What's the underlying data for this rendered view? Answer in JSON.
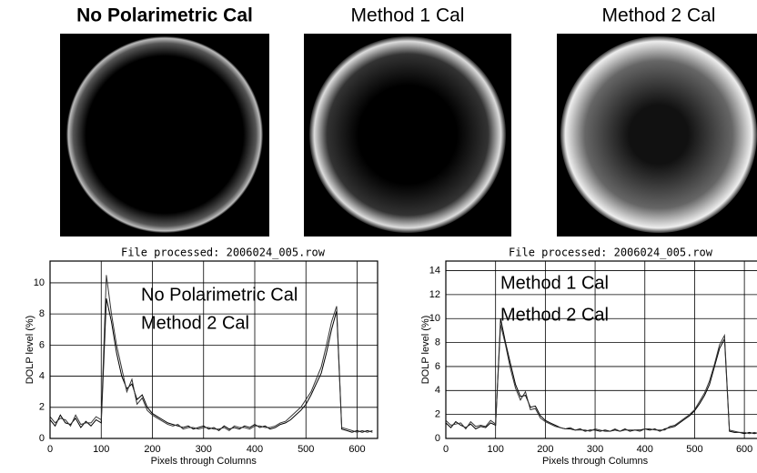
{
  "images": [
    {
      "title": "No Polarimetric Cal"
    },
    {
      "title": "Method 1 Cal"
    },
    {
      "title": "Method 2 Cal"
    }
  ],
  "chart_data": [
    {
      "type": "line",
      "title": "File processed: 2006024_005.row",
      "x_label": "Pixels through Columns",
      "y_label": "DOLP level (%)",
      "xlim": [
        0,
        640
      ],
      "xticks": [
        0,
        100,
        200,
        300,
        400,
        500,
        600
      ],
      "ylim": [
        0,
        11.4
      ],
      "yticks": [
        0,
        2,
        4,
        6,
        8,
        10
      ],
      "grid": true,
      "x": [
        0,
        10,
        20,
        30,
        40,
        50,
        60,
        70,
        80,
        90,
        100,
        110,
        120,
        130,
        140,
        150,
        160,
        170,
        180,
        190,
        200,
        210,
        220,
        230,
        240,
        250,
        260,
        270,
        280,
        290,
        300,
        310,
        320,
        330,
        340,
        350,
        360,
        370,
        380,
        390,
        400,
        410,
        420,
        430,
        440,
        450,
        460,
        470,
        480,
        490,
        500,
        510,
        520,
        530,
        540,
        550,
        560,
        570,
        580,
        590,
        600,
        610,
        620,
        630
      ],
      "series": [
        {
          "name": "No Polarimetric Cal",
          "color": "#000000",
          "values": [
            1.2,
            0.8,
            1.5,
            1.0,
            0.9,
            1.3,
            0.7,
            1.1,
            0.8,
            1.2,
            1.0,
            9.0,
            7.5,
            5.5,
            4.0,
            3.2,
            3.5,
            2.5,
            2.8,
            2.0,
            1.6,
            1.4,
            1.2,
            1.0,
            0.9,
            0.8,
            0.7,
            0.8,
            0.6,
            0.7,
            0.8,
            0.6,
            0.7,
            0.5,
            0.8,
            0.6,
            0.7,
            0.6,
            0.8,
            0.7,
            0.9,
            0.7,
            0.8,
            0.6,
            0.7,
            0.9,
            1.0,
            1.2,
            1.5,
            1.8,
            2.2,
            2.8,
            3.5,
            4.2,
            5.5,
            7.0,
            8.2,
            0.6,
            0.5,
            0.4,
            0.5,
            0.4,
            0.5,
            0.4
          ]
        },
        {
          "name": "Method 2 Cal",
          "color": "#333333",
          "values": [
            1.4,
            1.0,
            1.3,
            1.2,
            0.8,
            1.5,
            0.9,
            1.0,
            1.0,
            1.4,
            1.2,
            10.5,
            8.0,
            6.0,
            4.5,
            3.0,
            3.8,
            2.2,
            2.6,
            1.8,
            1.5,
            1.3,
            1.1,
            0.9,
            0.8,
            0.9,
            0.6,
            0.7,
            0.7,
            0.6,
            0.7,
            0.7,
            0.6,
            0.6,
            0.7,
            0.5,
            0.8,
            0.7,
            0.7,
            0.6,
            0.8,
            0.8,
            0.7,
            0.7,
            0.8,
            1.0,
            1.1,
            1.4,
            1.7,
            2.0,
            2.5,
            3.0,
            3.8,
            4.6,
            6.0,
            7.5,
            8.5,
            0.7,
            0.6,
            0.5,
            0.4,
            0.5,
            0.4,
            0.5
          ]
        }
      ]
    },
    {
      "type": "line",
      "title": "File processed: 2006024_005.row",
      "x_label": "Pixels through Columns",
      "y_label": "DOLP level (%)",
      "xlim": [
        0,
        640
      ],
      "xticks": [
        0,
        100,
        200,
        300,
        400,
        500,
        600
      ],
      "ylim": [
        0,
        14.8
      ],
      "yticks": [
        0,
        2,
        4,
        6,
        8,
        10,
        12,
        14
      ],
      "grid": true,
      "x": [
        0,
        10,
        20,
        30,
        40,
        50,
        60,
        70,
        80,
        90,
        100,
        110,
        120,
        130,
        140,
        150,
        160,
        170,
        180,
        190,
        200,
        210,
        220,
        230,
        240,
        250,
        260,
        270,
        280,
        290,
        300,
        310,
        320,
        330,
        340,
        350,
        360,
        370,
        380,
        390,
        400,
        410,
        420,
        430,
        440,
        450,
        460,
        470,
        480,
        490,
        500,
        510,
        520,
        530,
        540,
        550,
        560,
        570,
        580,
        590,
        600,
        610,
        620,
        630
      ],
      "series": [
        {
          "name": "Method 1 Cal",
          "color": "#000000",
          "values": [
            1.3,
            0.9,
            1.4,
            1.1,
            0.9,
            1.2,
            0.8,
            1.0,
            0.9,
            1.3,
            1.1,
            10.0,
            8.0,
            6.2,
            4.5,
            3.5,
            3.6,
            2.6,
            2.7,
            1.9,
            1.5,
            1.3,
            1.1,
            0.9,
            0.8,
            0.8,
            0.7,
            0.8,
            0.6,
            0.7,
            0.7,
            0.6,
            0.7,
            0.6,
            0.7,
            0.6,
            0.8,
            0.6,
            0.7,
            0.7,
            0.8,
            0.7,
            0.8,
            0.6,
            0.8,
            0.9,
            1.0,
            1.3,
            1.6,
            1.9,
            2.3,
            2.9,
            3.6,
            4.5,
            6.0,
            7.5,
            8.3,
            0.6,
            0.5,
            0.5,
            0.4,
            0.5,
            0.4,
            0.5
          ]
        },
        {
          "name": "Method 2 Cal",
          "color": "#333333",
          "values": [
            1.5,
            1.1,
            1.2,
            1.3,
            0.8,
            1.4,
            1.0,
            1.1,
            1.0,
            1.5,
            1.2,
            9.5,
            7.8,
            5.8,
            4.2,
            3.2,
            3.9,
            2.4,
            2.5,
            1.7,
            1.4,
            1.2,
            1.0,
            0.9,
            0.8,
            0.9,
            0.7,
            0.7,
            0.7,
            0.6,
            0.8,
            0.7,
            0.6,
            0.6,
            0.8,
            0.6,
            0.7,
            0.7,
            0.7,
            0.6,
            0.8,
            0.8,
            0.7,
            0.7,
            0.7,
            1.0,
            1.1,
            1.4,
            1.7,
            2.0,
            2.4,
            3.1,
            3.8,
            4.8,
            6.2,
            7.8,
            8.6,
            0.7,
            0.6,
            0.5,
            0.5,
            0.4,
            0.5,
            0.4
          ]
        }
      ]
    }
  ]
}
